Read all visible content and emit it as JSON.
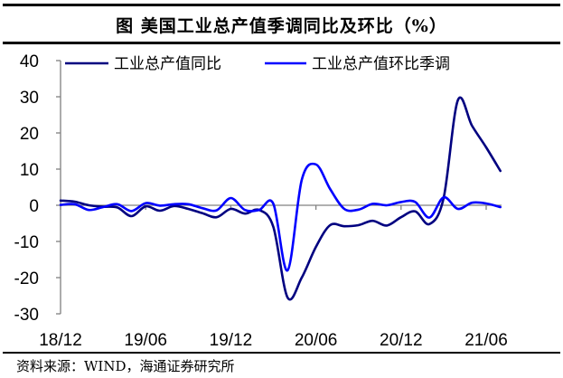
{
  "title": "图  美国工业总产值季调同比及环比（%）",
  "source": "资料来源：WIND，海通证券研究所",
  "colors": {
    "yoy": "#000080",
    "mom": "#0000FF",
    "axis": "#808080"
  },
  "legend": [
    {
      "label": "工业总产值同比",
      "color": "#000080"
    },
    {
      "label": "工业总产值环比季调",
      "color": "#0000FF"
    }
  ],
  "chart_data": {
    "type": "line",
    "title": "美国工业总产值季调同比及环比（%）",
    "xlabel": "",
    "ylabel": "%",
    "ylim": [
      -30,
      40
    ],
    "yticks": [
      40,
      30,
      20,
      10,
      0,
      -10,
      -20,
      -30
    ],
    "xtick_labels": [
      "18/12",
      "19/06",
      "19/12",
      "20/06",
      "20/12",
      "21/06"
    ],
    "grid": false,
    "legend_position": "top",
    "x": [
      "18/12",
      "19/01",
      "19/02",
      "19/03",
      "19/04",
      "19/05",
      "19/06",
      "19/07",
      "19/08",
      "19/09",
      "19/10",
      "19/11",
      "19/12",
      "20/01",
      "20/02",
      "20/03",
      "20/04",
      "20/05",
      "20/06",
      "20/07",
      "20/08",
      "20/09",
      "20/10",
      "20/11",
      "20/12",
      "21/01",
      "21/02",
      "21/03",
      "21/04",
      "21/05",
      "21/06",
      "21/07"
    ],
    "series": [
      {
        "name": "工业总产值同比",
        "values": [
          1.3,
          1.0,
          0.0,
          -0.4,
          -0.6,
          -3.0,
          -0.3,
          -1.5,
          -0.2,
          -1.0,
          -2.2,
          -3.3,
          -1.0,
          -2.3,
          -1.3,
          -6.0,
          -25.5,
          -20.0,
          -11.5,
          -5.5,
          -5.8,
          -5.5,
          -4.3,
          -5.6,
          -3.3,
          -1.7,
          -5.2,
          2.0,
          29.0,
          22.0,
          16.0,
          9.5
        ]
      },
      {
        "name": "工业总产值环比季调",
        "values": [
          0.1,
          0.3,
          -1.3,
          -0.5,
          0.3,
          -1.6,
          0.6,
          -0.1,
          0.3,
          0.3,
          -0.8,
          -1.4,
          2.0,
          -1.3,
          -1.3,
          0.4,
          -18.0,
          7.0,
          11.3,
          4.5,
          -1.0,
          -1.2,
          0.4,
          0.0,
          0.9,
          0.9,
          -3.4,
          2.2,
          -1.0,
          0.7,
          0.5,
          -0.5
        ]
      }
    ]
  }
}
